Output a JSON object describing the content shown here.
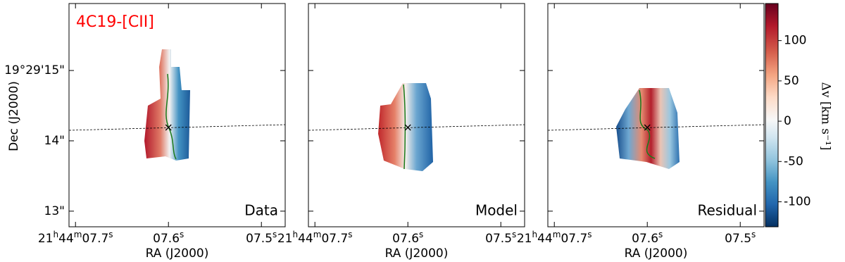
{
  "figure": {
    "title": "4C19-[CII]",
    "panels": [
      {
        "label": "Data"
      },
      {
        "label": "Model"
      },
      {
        "label": "Residual"
      }
    ],
    "x_axis_label": "RA (J2000)",
    "y_axis_label": "Dec (J2000)",
    "xticks": [
      "21h44m07.7s",
      "07.6s",
      "07.5s"
    ],
    "yticks": [
      "19°29'15\"",
      "14\"",
      "13\""
    ]
  },
  "colorbar": {
    "label": "Δv [km s⁻¹]",
    "ylim": [
      -131,
      146
    ],
    "yticks": [
      -100,
      -50,
      0,
      50,
      100
    ]
  }
}
